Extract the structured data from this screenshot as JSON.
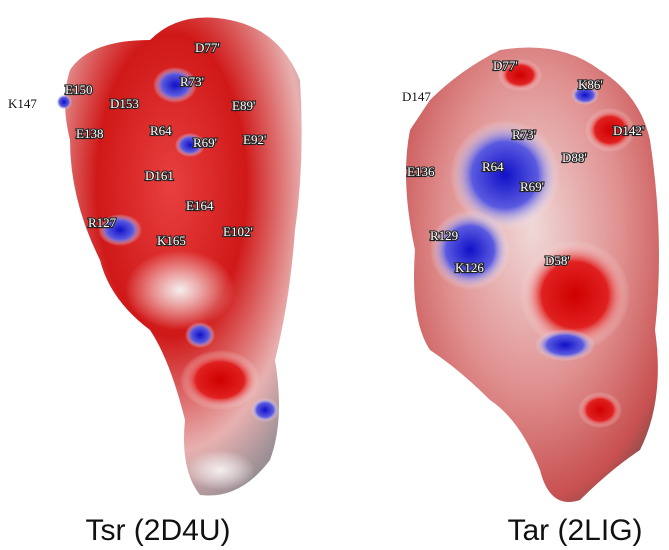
{
  "panels": [
    {
      "caption": "Tsr (2D4U)",
      "labels": [
        "D77'",
        "R73'",
        "E150",
        "K147",
        "D153",
        "E89'",
        "R64",
        "E138",
        "R69'",
        "E92'",
        "D161",
        "E164",
        "R127",
        "K165",
        "E102'"
      ]
    },
    {
      "caption": "Tar (2LIG)",
      "labels": [
        "D77'",
        "K86'",
        "D147",
        "R73'",
        "D142'",
        "R64",
        "D88'",
        "E136",
        "R69'",
        "R129",
        "D58'",
        "K126"
      ]
    }
  ]
}
